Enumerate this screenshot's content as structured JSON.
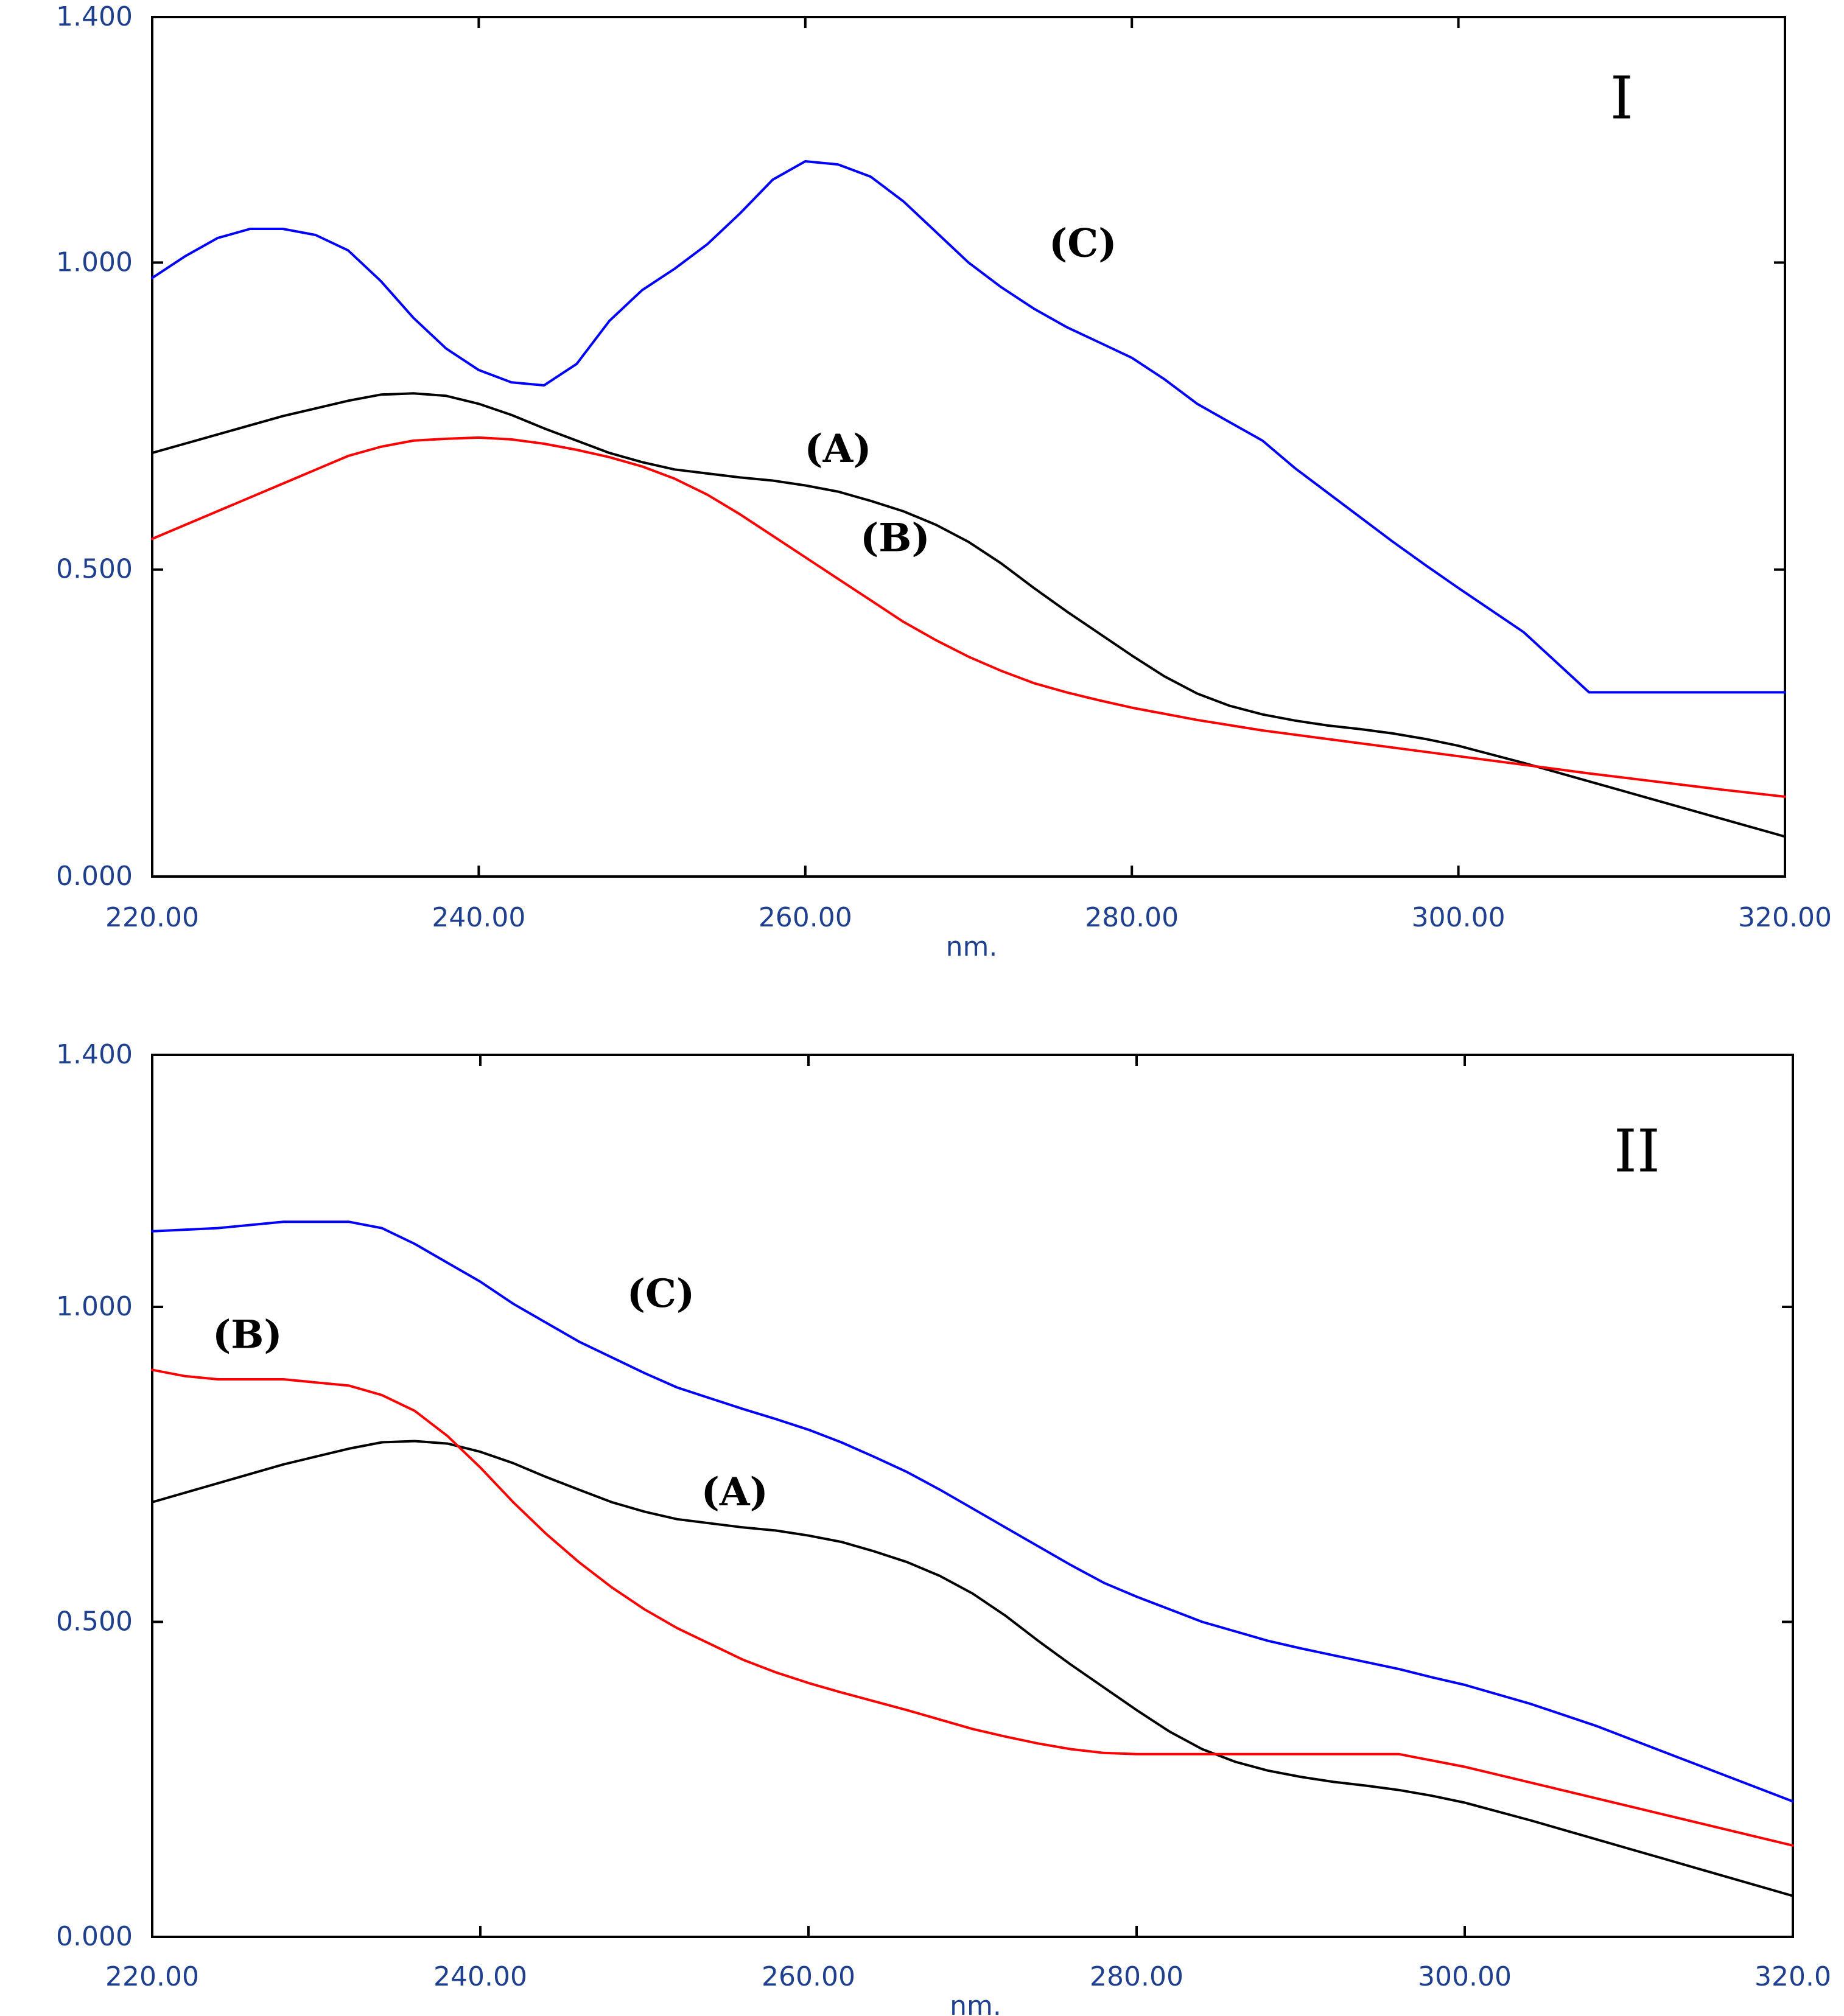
{
  "chart_data": [
    {
      "type": "line",
      "panel": "I",
      "title": "",
      "xlabel": "nm.",
      "ylabel": "",
      "xlim": [
        220,
        320
      ],
      "ylim": [
        0,
        1.4
      ],
      "x_ticks": [
        220,
        240,
        260,
        280,
        300,
        320
      ],
      "x_tick_labels": [
        "220.00",
        "240.00",
        "260.00",
        "280.00",
        "300.00",
        "320.00"
      ],
      "y_ticks": [
        0,
        0.5,
        1.0,
        1.4
      ],
      "y_tick_labels": [
        "0.000",
        "0.500",
        "1.000",
        "1.400"
      ],
      "series": [
        {
          "name": "(A)",
          "color": "#000000",
          "x": [
            220,
            224,
            228,
            232,
            234,
            236,
            238,
            240,
            242,
            244,
            246,
            248,
            250,
            252,
            256,
            258,
            260,
            262,
            264,
            266,
            268,
            270,
            272,
            274,
            276,
            278,
            280,
            282,
            284,
            286,
            288,
            290,
            292,
            294,
            296,
            298,
            300,
            304,
            308,
            312,
            316,
            320
          ],
          "values": [
            0.69,
            0.72,
            0.75,
            0.775,
            0.785,
            0.787,
            0.783,
            0.77,
            0.752,
            0.73,
            0.71,
            0.69,
            0.675,
            0.663,
            0.65,
            0.645,
            0.637,
            0.627,
            0.612,
            0.595,
            0.573,
            0.545,
            0.51,
            0.47,
            0.432,
            0.396,
            0.36,
            0.326,
            0.298,
            0.278,
            0.264,
            0.254,
            0.246,
            0.24,
            0.233,
            0.224,
            0.213,
            0.185,
            0.155,
            0.125,
            0.095,
            0.065
          ]
        },
        {
          "name": "(B)",
          "color": "#ff0000",
          "x": [
            220,
            224,
            228,
            232,
            234,
            236,
            238,
            240,
            242,
            244,
            246,
            248,
            250,
            252,
            254,
            256,
            258,
            260,
            262,
            264,
            266,
            268,
            270,
            272,
            274,
            276,
            278,
            280,
            284,
            288,
            292,
            296,
            300,
            304,
            308,
            312,
            316,
            320
          ],
          "values": [
            0.55,
            0.595,
            0.64,
            0.685,
            0.7,
            0.71,
            0.713,
            0.715,
            0.712,
            0.705,
            0.695,
            0.683,
            0.668,
            0.648,
            0.622,
            0.59,
            0.555,
            0.52,
            0.485,
            0.45,
            0.415,
            0.385,
            0.358,
            0.335,
            0.315,
            0.3,
            0.287,
            0.275,
            0.255,
            0.238,
            0.224,
            0.21,
            0.196,
            0.182,
            0.168,
            0.155,
            0.142,
            0.13
          ]
        },
        {
          "name": "(C)",
          "color": "#0000ff",
          "x": [
            220,
            222,
            224,
            226,
            228,
            230,
            232,
            234,
            236,
            238,
            240,
            242,
            244,
            246,
            248,
            250,
            252,
            254,
            256,
            258,
            260,
            262,
            264,
            266,
            268,
            270,
            272,
            274,
            276,
            278,
            280,
            282,
            284,
            286,
            288,
            290,
            292,
            294,
            296,
            298,
            300,
            304,
            308,
            312,
            316,
            320
          ],
          "values": [
            0.975,
            1.01,
            1.04,
            1.055,
            1.055,
            1.045,
            1.02,
            0.97,
            0.91,
            0.86,
            0.825,
            0.805,
            0.8,
            0.835,
            0.905,
            0.955,
            0.99,
            1.03,
            1.08,
            1.135,
            1.165,
            1.16,
            1.14,
            1.1,
            1.05,
            1.0,
            0.96,
            0.925,
            0.895,
            0.87,
            0.845,
            0.81,
            0.77,
            0.74,
            0.71,
            0.665,
            0.625,
            0.585,
            0.545,
            0.507,
            0.47,
            0.398,
            0.3,
            0.3,
            0.3,
            0.3
          ]
        }
      ],
      "annotations": [
        {
          "text": "(C)",
          "x": 277,
          "y": 1.01
        },
        {
          "text": "(A)",
          "x": 262,
          "y": 0.675
        },
        {
          "text": "(B)",
          "x": 265.5,
          "y": 0.53
        },
        {
          "text": "I",
          "x": 310,
          "y": 1.235,
          "role": "panel"
        }
      ]
    },
    {
      "type": "line",
      "panel": "II",
      "title": "",
      "xlabel": "nm.",
      "ylabel": "",
      "xlim": [
        220,
        320
      ],
      "ylim": [
        0,
        1.4
      ],
      "x_ticks": [
        220,
        240,
        260,
        280,
        300,
        320
      ],
      "x_tick_labels": [
        "220.00",
        "240.00",
        "260.00",
        "280.00",
        "300.00",
        "320.0"
      ],
      "y_ticks": [
        0,
        0.5,
        1.0,
        1.4
      ],
      "y_tick_labels": [
        "0.000",
        "0.500",
        "1.000",
        "1.400"
      ],
      "series": [
        {
          "name": "(A)",
          "color": "#000000",
          "x": [
            220,
            224,
            228,
            232,
            234,
            236,
            238,
            240,
            242,
            244,
            246,
            248,
            250,
            252,
            256,
            258,
            260,
            262,
            264,
            266,
            268,
            270,
            272,
            274,
            276,
            278,
            280,
            282,
            284,
            286,
            288,
            290,
            292,
            294,
            296,
            298,
            300,
            304,
            308,
            312,
            316,
            320
          ],
          "values": [
            0.69,
            0.72,
            0.75,
            0.775,
            0.785,
            0.787,
            0.783,
            0.77,
            0.752,
            0.73,
            0.71,
            0.69,
            0.675,
            0.663,
            0.65,
            0.645,
            0.637,
            0.627,
            0.612,
            0.595,
            0.573,
            0.545,
            0.51,
            0.47,
            0.432,
            0.396,
            0.36,
            0.326,
            0.298,
            0.278,
            0.264,
            0.254,
            0.246,
            0.24,
            0.233,
            0.224,
            0.213,
            0.185,
            0.155,
            0.125,
            0.095,
            0.065
          ]
        },
        {
          "name": "(B)",
          "color": "#ff0000",
          "x": [
            220,
            222,
            224,
            226,
            228,
            230,
            232,
            234,
            236,
            238,
            240,
            242,
            244,
            246,
            248,
            250,
            252,
            254,
            256,
            258,
            260,
            262,
            264,
            266,
            268,
            270,
            272,
            274,
            276,
            278,
            280,
            284,
            288,
            292,
            296,
            300,
            304,
            308,
            312,
            316,
            320
          ],
          "values": [
            0.9,
            0.89,
            0.885,
            0.885,
            0.885,
            0.88,
            0.875,
            0.86,
            0.835,
            0.795,
            0.745,
            0.69,
            0.64,
            0.595,
            0.555,
            0.52,
            0.49,
            0.465,
            0.44,
            0.42,
            0.403,
            0.388,
            0.374,
            0.36,
            0.345,
            0.33,
            0.318,
            0.307,
            0.298,
            0.292,
            0.29,
            0.29,
            0.29,
            0.29,
            0.29,
            0.27,
            0.245,
            0.22,
            0.195,
            0.17,
            0.145
          ]
        },
        {
          "name": "(C)",
          "color": "#0000ff",
          "x": [
            220,
            224,
            228,
            232,
            234,
            236,
            238,
            240,
            242,
            244,
            246,
            248,
            250,
            252,
            254,
            256,
            258,
            260,
            262,
            264,
            266,
            268,
            270,
            272,
            274,
            276,
            278,
            280,
            282,
            284,
            286,
            288,
            290,
            292,
            294,
            296,
            298,
            300,
            304,
            308,
            312,
            316,
            320
          ],
          "values": [
            1.12,
            1.125,
            1.135,
            1.135,
            1.125,
            1.1,
            1.07,
            1.04,
            1.005,
            0.975,
            0.945,
            0.92,
            0.895,
            0.872,
            0.855,
            0.838,
            0.822,
            0.805,
            0.785,
            0.762,
            0.738,
            0.71,
            0.68,
            0.65,
            0.62,
            0.59,
            0.562,
            0.54,
            0.52,
            0.5,
            0.485,
            0.47,
            0.458,
            0.447,
            0.436,
            0.425,
            0.412,
            0.4,
            0.37,
            0.335,
            0.295,
            0.255,
            0.215
          ]
        }
      ],
      "annotations": [
        {
          "text": "(C)",
          "x": 251,
          "y": 1.0
        },
        {
          "text": "(B)",
          "x": 225.8,
          "y": 0.935
        },
        {
          "text": "(A)",
          "x": 255.5,
          "y": 0.685
        },
        {
          "text": "II",
          "x": 310.5,
          "y": 1.215,
          "role": "panel"
        }
      ]
    }
  ]
}
